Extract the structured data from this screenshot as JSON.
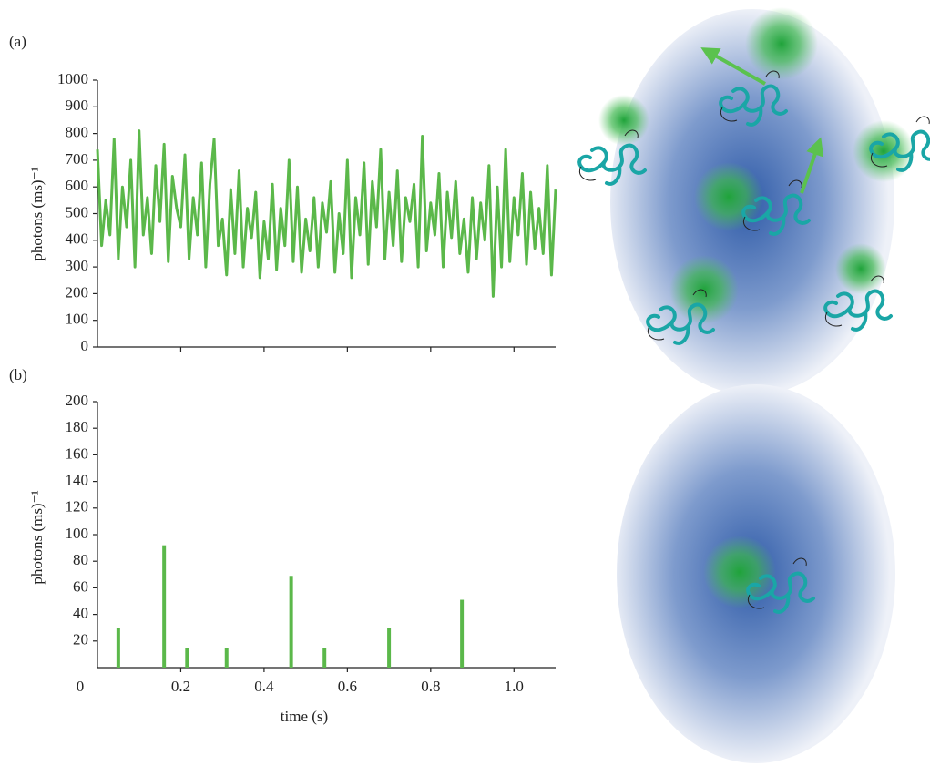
{
  "chart_data": [
    {
      "type": "line",
      "panel_label": "(a)",
      "ylabel": "photons (ms)⁻¹",
      "color": "#5bb84a",
      "xlim": [
        0,
        1.1
      ],
      "ylim": [
        0,
        1000
      ],
      "yticks": [
        0,
        100,
        200,
        300,
        400,
        500,
        600,
        700,
        800,
        900,
        1000
      ],
      "x": [
        0,
        0.01,
        0.02,
        0.03,
        0.04,
        0.05,
        0.06,
        0.07,
        0.08,
        0.09,
        0.1,
        0.11,
        0.12,
        0.13,
        0.14,
        0.15,
        0.16,
        0.17,
        0.18,
        0.19,
        0.2,
        0.21,
        0.22,
        0.23,
        0.24,
        0.25,
        0.26,
        0.27,
        0.28,
        0.29,
        0.3,
        0.31,
        0.32,
        0.33,
        0.34,
        0.35,
        0.36,
        0.37,
        0.38,
        0.39,
        0.4,
        0.41,
        0.42,
        0.43,
        0.44,
        0.45,
        0.46,
        0.47,
        0.48,
        0.49,
        0.5,
        0.51,
        0.52,
        0.53,
        0.54,
        0.55,
        0.56,
        0.57,
        0.58,
        0.59,
        0.6,
        0.61,
        0.62,
        0.63,
        0.64,
        0.65,
        0.66,
        0.67,
        0.68,
        0.69,
        0.7,
        0.71,
        0.72,
        0.73,
        0.74,
        0.75,
        0.76,
        0.77,
        0.78,
        0.79,
        0.8,
        0.81,
        0.82,
        0.83,
        0.84,
        0.85,
        0.86,
        0.87,
        0.88,
        0.89,
        0.9,
        0.91,
        0.92,
        0.93,
        0.94,
        0.95,
        0.96,
        0.97,
        0.98,
        0.99,
        1.0,
        1.01,
        1.02,
        1.03,
        1.04,
        1.05,
        1.06,
        1.07,
        1.08,
        1.09,
        1.1
      ],
      "values": [
        740,
        380,
        550,
        420,
        780,
        330,
        600,
        450,
        700,
        300,
        810,
        420,
        560,
        350,
        680,
        470,
        760,
        320,
        640,
        520,
        450,
        720,
        330,
        560,
        420,
        690,
        300,
        610,
        780,
        380,
        480,
        270,
        590,
        350,
        660,
        300,
        520,
        410,
        580,
        260,
        470,
        330,
        610,
        290,
        520,
        380,
        700,
        320,
        600,
        280,
        480,
        360,
        560,
        300,
        540,
        430,
        620,
        280,
        500,
        350,
        700,
        260,
        560,
        420,
        690,
        310,
        620,
        450,
        740,
        330,
        580,
        380,
        660,
        320,
        560,
        470,
        610,
        300,
        790,
        360,
        540,
        420,
        650,
        300,
        580,
        410,
        620,
        350,
        480,
        280,
        560,
        330,
        540,
        400,
        680,
        190,
        600,
        300,
        740,
        320,
        560,
        420,
        650,
        310,
        580,
        370,
        520,
        350,
        680,
        270,
        590
      ]
    },
    {
      "type": "bar",
      "panel_label": "(b)",
      "ylabel": "photons (ms)⁻¹",
      "xlabel": "time (s)",
      "color": "#5bb84a",
      "xlim": [
        0,
        1.1
      ],
      "ylim": [
        0,
        200
      ],
      "xticks": [
        0,
        0.2,
        0.4,
        0.6,
        0.8,
        {
          "value": 1,
          "label": "1.0"
        }
      ],
      "yticks": [
        20,
        40,
        60,
        80,
        100,
        120,
        140,
        160,
        180,
        200
      ],
      "x": [
        0.05,
        0.16,
        0.215,
        0.31,
        0.465,
        0.545,
        0.7,
        0.875
      ],
      "values": [
        30,
        92,
        15,
        15,
        69,
        15,
        30,
        51
      ]
    }
  ]
}
